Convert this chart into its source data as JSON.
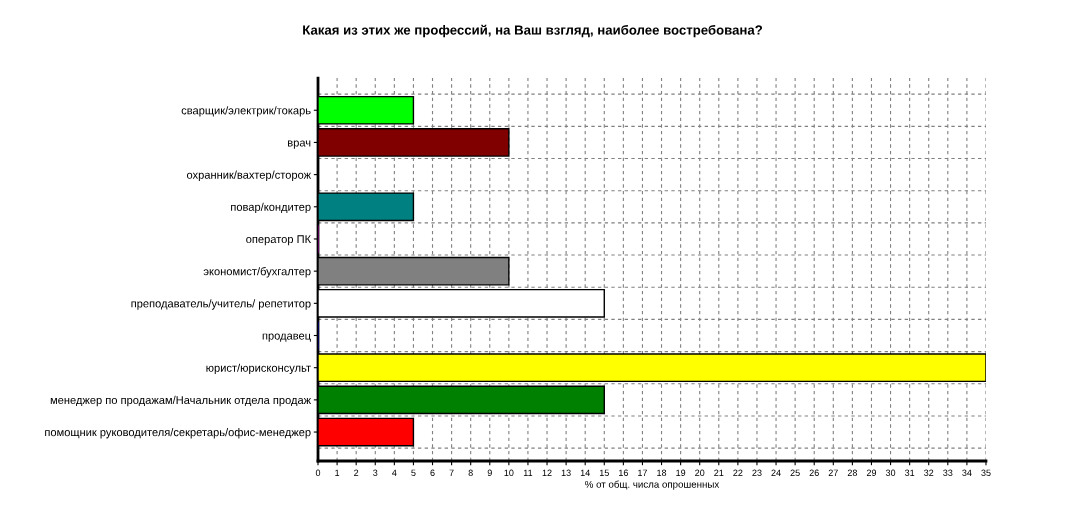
{
  "chart_data": {
    "type": "bar",
    "orientation": "horizontal",
    "title": "Какая из этих же профессий, на Ваш взгляд, наиболее востребована?",
    "xlabel": "% от общ. числа опрошенных",
    "categories": [
      "сварщик/электрик/токарь",
      "врач",
      "охранник/вахтер/сторож",
      "повар/кондитер",
      "оператор ПК",
      "экономист/бухгалтер",
      "преподаватель/учитель/ репетитор",
      "продавец",
      "юрист/юрисконсульт",
      "менеджер по продажам/Начальник отдела продаж",
      "помощник руководителя/секретарь/офис-менеджер"
    ],
    "values": [
      5,
      10,
      0,
      5,
      0,
      10,
      15,
      0,
      35,
      15,
      5
    ],
    "colors": [
      "#00ff00",
      "#800000",
      "#000000",
      "#008080",
      "#800080",
      "#808080",
      "#ffffff",
      "#000080",
      "#ffff00",
      "#008000",
      "#ff0000"
    ],
    "xlim": [
      0,
      35
    ],
    "xticks": [
      0,
      1,
      2,
      3,
      4,
      5,
      6,
      7,
      8,
      9,
      10,
      11,
      12,
      13,
      14,
      15,
      16,
      17,
      18,
      19,
      20,
      21,
      22,
      23,
      24,
      25,
      26,
      27,
      28,
      29,
      30,
      31,
      32,
      33,
      34,
      35
    ],
    "grid": true
  }
}
